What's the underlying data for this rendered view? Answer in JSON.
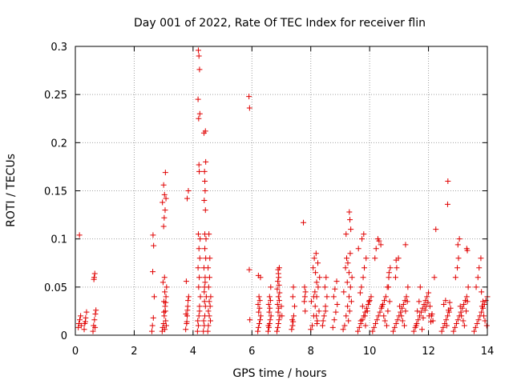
{
  "chart_data": {
    "type": "scatter",
    "title": "Day 001 of 2022, Rate Of TEC Index for receiver flin",
    "xlabel": "GPS time / hours",
    "ylabel": "ROTI / TECUs",
    "xlim": [
      0,
      14
    ],
    "ylim": [
      0,
      0.3
    ],
    "xticks": [
      0,
      2,
      4,
      6,
      8,
      10,
      12,
      14
    ],
    "xtick_labels": [
      "0",
      "2",
      "4",
      "6",
      "8",
      "10",
      "12",
      "14"
    ],
    "yticks": [
      0,
      0.05,
      0.1,
      0.15,
      0.2,
      0.25,
      0.3
    ],
    "ytick_labels": [
      "0",
      "0.05",
      "0.1",
      "0.15",
      "0.2",
      "0.25",
      "0.3"
    ],
    "grid": true,
    "marker": "+",
    "series": [
      {
        "name": "ROTI",
        "color": "#e00000",
        "x": [
          0.1,
          0.12,
          0.15,
          0.18,
          0.2,
          0.14,
          0.3,
          0.32,
          0.35,
          0.38,
          0.34,
          0.6,
          0.62,
          0.65,
          0.68,
          0.7,
          0.64,
          0.66,
          0.63,
          0.67,
          2.6,
          2.62,
          2.65,
          2.68,
          2.63,
          2.66,
          2.64,
          2.95,
          2.97,
          3.0,
          3.02,
          3.05,
          3.08,
          3.1,
          3.03,
          3.06,
          3.01,
          3.04,
          2.98,
          3.07,
          3.09,
          3.0,
          3.02,
          3.05,
          2.96,
          3.08,
          3.03,
          3.0,
          3.06,
          3.04,
          3.01,
          3.07,
          3.75,
          3.78,
          3.8,
          3.82,
          3.85,
          3.79,
          3.81,
          3.77,
          3.83,
          3.8,
          3.84,
          3.76,
          4.15,
          4.18,
          4.2,
          4.22,
          4.25,
          4.19,
          4.21,
          4.17,
          4.23,
          4.2,
          4.24,
          4.16,
          4.22,
          4.18,
          4.21,
          4.2,
          4.19,
          4.23,
          4.17,
          4.22,
          4.2,
          4.18,
          4.35,
          4.38,
          4.4,
          4.42,
          4.45,
          4.39,
          4.41,
          4.37,
          4.43,
          4.4,
          4.44,
          4.36,
          4.42,
          4.38,
          4.41,
          4.4,
          4.39,
          4.43,
          4.37,
          4.42,
          4.4,
          4.38,
          4.41,
          4.39,
          4.5,
          4.52,
          4.55,
          4.58,
          4.6,
          4.53,
          4.56,
          4.51,
          4.57,
          4.54,
          4.59,
          4.52,
          4.55,
          5.9,
          5.92,
          5.91,
          5.93,
          6.2,
          6.22,
          6.25,
          6.28,
          6.3,
          6.23,
          6.26,
          6.21,
          6.27,
          6.24,
          6.29,
          6.22,
          6.55,
          6.58,
          6.6,
          6.62,
          6.65,
          6.59,
          6.61,
          6.57,
          6.63,
          6.6,
          6.64,
          6.56,
          6.85,
          6.88,
          6.9,
          6.92,
          6.95,
          6.89,
          6.91,
          6.87,
          6.93,
          6.9,
          6.94,
          6.86,
          6.92,
          6.88,
          6.91,
          6.9,
          6.89,
          6.93,
          7.0,
          7.02,
          7.35,
          7.38,
          7.4,
          7.42,
          7.45,
          7.39,
          7.41,
          7.37,
          7.75,
          7.78,
          7.8,
          7.82,
          7.79,
          7.81,
          8.0,
          8.05,
          8.1,
          8.15,
          8.2,
          8.25,
          8.3,
          8.08,
          8.12,
          8.18,
          8.22,
          8.28,
          8.02,
          8.14,
          8.2,
          8.16,
          8.24,
          8.1,
          8.19,
          8.21,
          8.4,
          8.45,
          8.5,
          8.55,
          8.48,
          8.52,
          8.42,
          8.5,
          8.75,
          8.8,
          8.85,
          8.9,
          8.78,
          8.82,
          8.88,
          9.1,
          9.15,
          9.2,
          9.25,
          9.3,
          9.35,
          9.4,
          9.18,
          9.22,
          9.28,
          9.32,
          9.38,
          9.12,
          9.24,
          9.3,
          9.26,
          9.34,
          9.2,
          9.36,
          9.33,
          9.31,
          9.6,
          9.65,
          9.7,
          9.75,
          9.8,
          9.85,
          9.9,
          9.95,
          10.0,
          10.05,
          9.68,
          9.72,
          9.78,
          9.82,
          9.88,
          9.62,
          9.74,
          9.8,
          9.76,
          9.84,
          9.7,
          9.86,
          9.92,
          9.98,
          10.1,
          10.15,
          10.2,
          10.25,
          10.3,
          10.35,
          10.4,
          10.45,
          10.5,
          10.55,
          10.6,
          10.65,
          10.7,
          10.18,
          10.22,
          10.28,
          10.32,
          10.38,
          10.42,
          10.48,
          10.52,
          10.58,
          10.62,
          10.68,
          10.64,
          10.66,
          10.8,
          10.85,
          10.9,
          10.95,
          11.0,
          11.05,
          11.1,
          11.15,
          11.2,
          11.25,
          11.3,
          10.88,
          10.92,
          10.98,
          11.02,
          11.08,
          11.12,
          11.18,
          11.22,
          11.28,
          10.9,
          11.22,
          11.5,
          11.55,
          11.6,
          11.65,
          11.7,
          11.75,
          11.8,
          11.85,
          11.9,
          11.95,
          12.0,
          12.05,
          12.1,
          12.15,
          11.58,
          11.62,
          11.68,
          11.72,
          11.78,
          11.82,
          11.88,
          11.92,
          11.98,
          12.02,
          12.08,
          12.12,
          12.2,
          12.25,
          12.45,
          12.5,
          12.55,
          12.6,
          12.65,
          12.7,
          12.75,
          12.52,
          12.58,
          12.62,
          12.68,
          12.72,
          12.65,
          12.66,
          12.85,
          12.9,
          12.95,
          13.0,
          13.05,
          13.1,
          13.15,
          13.2,
          13.25,
          13.3,
          13.35,
          12.92,
          12.98,
          13.02,
          13.08,
          13.12,
          13.18,
          13.22,
          13.28,
          13.32,
          13.0,
          13.05,
          13.3,
          13.32,
          13.55,
          13.6,
          13.65,
          13.7,
          13.75,
          13.8,
          13.85,
          13.9,
          13.95,
          14.0,
          13.62,
          13.68,
          13.72,
          13.78,
          13.82,
          13.88,
          13.92,
          13.98,
          13.8,
          13.85
        ],
        "y": [
          0.008,
          0.012,
          0.016,
          0.02,
          0.01,
          0.104,
          0.006,
          0.012,
          0.018,
          0.024,
          0.014,
          0.004,
          0.01,
          0.016,
          0.022,
          0.026,
          0.06,
          0.064,
          0.058,
          0.008,
          0.004,
          0.01,
          0.018,
          0.04,
          0.066,
          0.093,
          0.104,
          0.004,
          0.008,
          0.012,
          0.02,
          0.03,
          0.04,
          0.05,
          0.06,
          0.025,
          0.035,
          0.045,
          0.055,
          0.015,
          0.01,
          0.113,
          0.122,
          0.13,
          0.138,
          0.142,
          0.146,
          0.156,
          0.169,
          0.006,
          0.024,
          0.034,
          0.006,
          0.012,
          0.02,
          0.03,
          0.04,
          0.014,
          0.026,
          0.056,
          0.036,
          0.142,
          0.15,
          0.022,
          0.004,
          0.01,
          0.02,
          0.03,
          0.04,
          0.05,
          0.06,
          0.07,
          0.08,
          0.09,
          0.1,
          0.015,
          0.025,
          0.105,
          0.17,
          0.177,
          0.225,
          0.23,
          0.245,
          0.276,
          0.29,
          0.296,
          0.004,
          0.01,
          0.02,
          0.03,
          0.04,
          0.05,
          0.06,
          0.07,
          0.08,
          0.09,
          0.1,
          0.015,
          0.13,
          0.14,
          0.15,
          0.16,
          0.17,
          0.18,
          0.21,
          0.212,
          0.105,
          0.045,
          0.055,
          0.035,
          0.004,
          0.01,
          0.02,
          0.03,
          0.04,
          0.05,
          0.06,
          0.07,
          0.08,
          0.105,
          0.015,
          0.025,
          0.035,
          0.248,
          0.236,
          0.068,
          0.016,
          0.004,
          0.008,
          0.012,
          0.016,
          0.02,
          0.024,
          0.028,
          0.032,
          0.036,
          0.04,
          0.06,
          0.062,
          0.004,
          0.008,
          0.012,
          0.016,
          0.02,
          0.024,
          0.028,
          0.032,
          0.036,
          0.04,
          0.05,
          0.01,
          0.004,
          0.008,
          0.012,
          0.016,
          0.02,
          0.024,
          0.028,
          0.032,
          0.036,
          0.04,
          0.044,
          0.048,
          0.052,
          0.056,
          0.06,
          0.064,
          0.068,
          0.07,
          0.03,
          0.02,
          0.006,
          0.01,
          0.014,
          0.02,
          0.03,
          0.04,
          0.05,
          0.016,
          0.117,
          0.035,
          0.04,
          0.045,
          0.05,
          0.025,
          0.006,
          0.01,
          0.02,
          0.03,
          0.04,
          0.05,
          0.06,
          0.07,
          0.08,
          0.085,
          0.015,
          0.025,
          0.035,
          0.045,
          0.055,
          0.065,
          0.075,
          0.04,
          0.02,
          0.012,
          0.01,
          0.02,
          0.03,
          0.04,
          0.05,
          0.06,
          0.015,
          0.025,
          0.008,
          0.016,
          0.024,
          0.032,
          0.04,
          0.048,
          0.056,
          0.006,
          0.01,
          0.02,
          0.03,
          0.04,
          0.05,
          0.06,
          0.07,
          0.08,
          0.015,
          0.025,
          0.035,
          0.045,
          0.055,
          0.065,
          0.075,
          0.085,
          0.105,
          0.11,
          0.12,
          0.128,
          0.004,
          0.008,
          0.012,
          0.016,
          0.02,
          0.024,
          0.028,
          0.032,
          0.036,
          0.04,
          0.044,
          0.05,
          0.06,
          0.07,
          0.08,
          0.09,
          0.1,
          0.105,
          0.03,
          0.02,
          0.015,
          0.01,
          0.025,
          0.035,
          0.004,
          0.008,
          0.012,
          0.016,
          0.02,
          0.024,
          0.028,
          0.032,
          0.036,
          0.04,
          0.05,
          0.06,
          0.07,
          0.08,
          0.09,
          0.1,
          0.098,
          0.094,
          0.03,
          0.02,
          0.015,
          0.01,
          0.025,
          0.035,
          0.05,
          0.065,
          0.004,
          0.008,
          0.012,
          0.016,
          0.02,
          0.024,
          0.028,
          0.032,
          0.036,
          0.04,
          0.05,
          0.06,
          0.07,
          0.08,
          0.03,
          0.02,
          0.015,
          0.01,
          0.025,
          0.035,
          0.078,
          0.094,
          0.004,
          0.008,
          0.012,
          0.016,
          0.02,
          0.024,
          0.028,
          0.032,
          0.036,
          0.04,
          0.044,
          0.03,
          0.02,
          0.015,
          0.01,
          0.025,
          0.035,
          0.05,
          0.006,
          0.018,
          0.026,
          0.03,
          0.034,
          0.02,
          0.014,
          0.022,
          0.06,
          0.11,
          0.004,
          0.008,
          0.012,
          0.016,
          0.02,
          0.024,
          0.028,
          0.032,
          0.036,
          0.01,
          0.026,
          0.034,
          0.136,
          0.16,
          0.004,
          0.008,
          0.012,
          0.016,
          0.02,
          0.024,
          0.028,
          0.032,
          0.036,
          0.04,
          0.05,
          0.06,
          0.07,
          0.08,
          0.03,
          0.02,
          0.015,
          0.01,
          0.025,
          0.035,
          0.094,
          0.1,
          0.09,
          0.088,
          0.004,
          0.008,
          0.012,
          0.016,
          0.02,
          0.024,
          0.028,
          0.032,
          0.036,
          0.04,
          0.05,
          0.06,
          0.07,
          0.08,
          0.03,
          0.02,
          0.015,
          0.01,
          0.045,
          0.035
        ]
      }
    ]
  }
}
